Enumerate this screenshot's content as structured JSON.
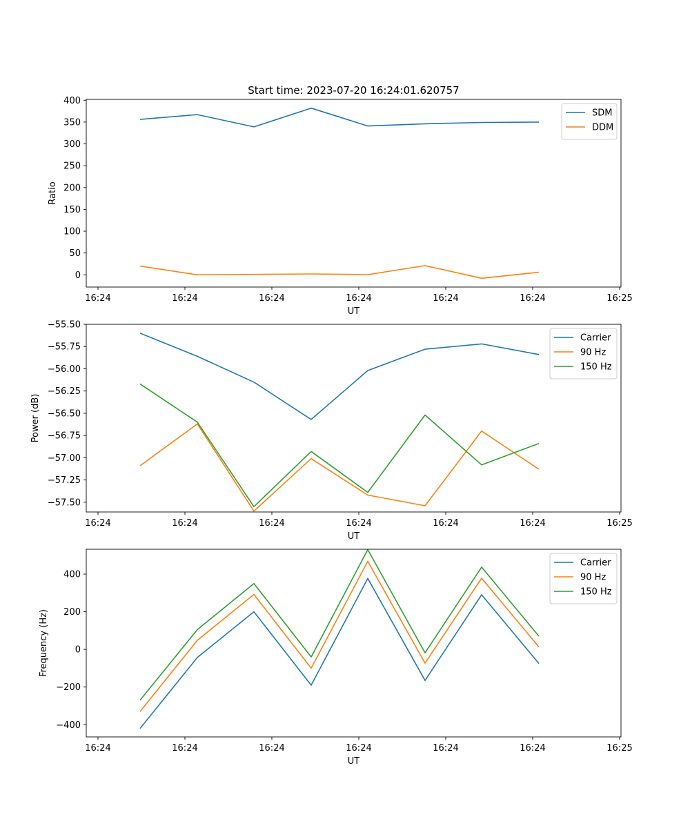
{
  "chart_data": [
    {
      "type": "line",
      "title": "Start time: 2023-07-20 16:24:01.620757",
      "xlabel": "UT",
      "ylabel": "Ratio",
      "x_tick_labels": [
        "16:24",
        "16:24",
        "16:24",
        "16:24",
        "16:24",
        "16:24",
        "16:24",
        "16:25"
      ],
      "y_tick_labels": [
        "0",
        "50",
        "100",
        "150",
        "200",
        "250",
        "300",
        "350",
        "400"
      ],
      "ylim": [
        -28,
        402
      ],
      "yticks": [
        0,
        50,
        100,
        150,
        200,
        250,
        300,
        350,
        400
      ],
      "legend_location": "top-right",
      "series": [
        {
          "name": "SDM",
          "color": "#1f77b4",
          "values": [
            356,
            367,
            339,
            382,
            341,
            346,
            349,
            350
          ]
        },
        {
          "name": "DDM",
          "color": "#ff7f0e",
          "values": [
            20,
            0,
            1,
            2,
            0.5,
            21,
            -8,
            6
          ]
        }
      ]
    },
    {
      "type": "line",
      "title": "",
      "xlabel": "UT",
      "ylabel": "Power (dB)",
      "x_tick_labels": [
        "16:24",
        "16:24",
        "16:24",
        "16:24",
        "16:24",
        "16:24",
        "16:24",
        "16:25"
      ],
      "y_tick_labels": [
        "−57.50",
        "−57.25",
        "−57.00",
        "−56.75",
        "−56.50",
        "−56.25",
        "−56.00",
        "−55.75",
        "−55.50"
      ],
      "ylim": [
        -57.61,
        -55.5
      ],
      "yticks": [
        -57.5,
        -57.25,
        -57.0,
        -56.75,
        -56.5,
        -56.25,
        -56.0,
        -55.75,
        -55.5
      ],
      "legend_location": "top-right",
      "series": [
        {
          "name": "Carrier",
          "color": "#1f77b4",
          "values": [
            -55.6,
            -55.86,
            -56.15,
            -56.57,
            -56.02,
            -55.78,
            -55.72,
            -55.84
          ]
        },
        {
          "name": "90 Hz",
          "color": "#ff7f0e",
          "values": [
            -57.09,
            -56.62,
            -57.6,
            -57.01,
            -57.42,
            -57.54,
            -56.7,
            -57.13
          ]
        },
        {
          "name": "150 Hz",
          "color": "#2ca02c",
          "values": [
            -56.17,
            -56.6,
            -57.55,
            -56.93,
            -57.39,
            -56.52,
            -57.08,
            -56.84
          ]
        }
      ]
    },
    {
      "type": "line",
      "title": "",
      "xlabel": "UT",
      "ylabel": "Frequency (Hz)",
      "x_tick_labels": [
        "16:24",
        "16:24",
        "16:24",
        "16:24",
        "16:24",
        "16:24",
        "16:24",
        "16:25"
      ],
      "y_tick_labels": [
        "−400",
        "−200",
        "0",
        "200",
        "400"
      ],
      "ylim": [
        -465,
        532
      ],
      "yticks": [
        -400,
        -200,
        0,
        200,
        400
      ],
      "legend_location": "top-right",
      "series": [
        {
          "name": "Carrier",
          "color": "#1f77b4",
          "values": [
            -420,
            -43,
            200,
            -190,
            377,
            -165,
            290,
            -75
          ]
        },
        {
          "name": "90 Hz",
          "color": "#ff7f0e",
          "values": [
            -330,
            48,
            292,
            -100,
            468,
            -73,
            378,
            13
          ]
        },
        {
          "name": "150 Hz",
          "color": "#2ca02c",
          "values": [
            -270,
            105,
            350,
            -40,
            530,
            -18,
            437,
            70
          ]
        }
      ]
    }
  ]
}
